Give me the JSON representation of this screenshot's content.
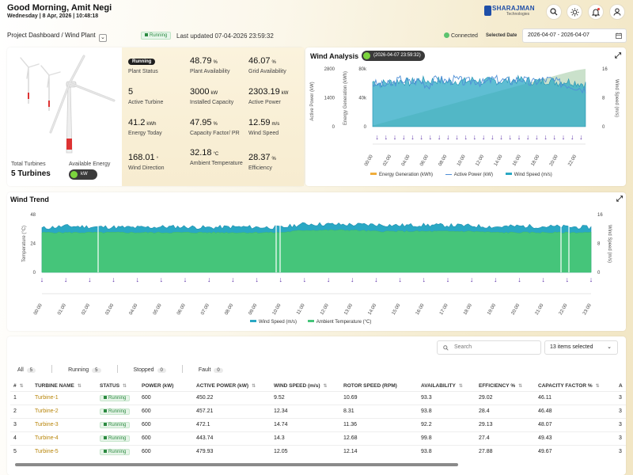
{
  "header": {
    "greeting": "Good Morning, Amit Negi",
    "date": "Wednesday | 8 Apr, 2026 | 10:48:18",
    "logo_name": "SHARAJMAN",
    "logo_sub": "Technologies",
    "icons": [
      "search-icon",
      "sun-icon",
      "bell-icon",
      "user-icon"
    ]
  },
  "toolbar": {
    "breadcrumb_root": "Project Dashboard",
    "breadcrumb_sep": "/",
    "breadcrumb_current": "Wind Plant",
    "status": "Running",
    "last_updated": "Last updated 07-04-2026 23:59:32",
    "connected": "Connected",
    "selected_date_label": "Selected Date",
    "date_range": "2026-04-07 - 2026-04-07"
  },
  "overview": {
    "total_turbines_label": "Total Turbines",
    "total_turbines_value": "5 Turbines",
    "available_energy_label": "Available Energy",
    "available_energy_unit": "kW",
    "plant_status": "Running",
    "plant_status_label": "Plant Status",
    "kpis": [
      {
        "value": "48.79",
        "unit": "%",
        "label": "Plant Availability"
      },
      {
        "value": "46.07",
        "unit": "%",
        "label": "Grid Availability"
      },
      {
        "value": "5",
        "unit": "",
        "label": "Active Turbine"
      },
      {
        "value": "3000",
        "unit": "kW",
        "label": "Installed Capacity"
      },
      {
        "value": "2303.19",
        "unit": "kW",
        "label": "Active Power"
      },
      {
        "value": "41.2",
        "unit": "kWh",
        "label": "Energy Today"
      },
      {
        "value": "47.95",
        "unit": "%",
        "label": "Capacity Factor/ PR"
      },
      {
        "value": "12.59",
        "unit": "m/s",
        "label": "Wind Speed"
      },
      {
        "value": "168.01",
        "unit": "°",
        "label": "Wind Direction"
      },
      {
        "value": "32.18",
        "unit": "°C",
        "label": "Ambient Temperature"
      },
      {
        "value": "28.37",
        "unit": "%",
        "label": "Efficiency"
      }
    ]
  },
  "chart_data": [
    {
      "type": "area",
      "title": "Wind Analysis",
      "timestamp": "(2026-04-07 23:59:32)",
      "x": [
        "00:00",
        "01:00",
        "02:00",
        "03:00",
        "04:00",
        "05:00",
        "06:00",
        "07:00",
        "08:00",
        "09:00",
        "10:00",
        "11:00",
        "12:00",
        "13:00",
        "14:00",
        "15:00",
        "16:00",
        "17:00",
        "18:00",
        "19:00",
        "20:00",
        "21:00",
        "22:00",
        "23:00"
      ],
      "y_left_outer": {
        "label": "Active Power (kW)",
        "ticks": [
          0,
          1400,
          2800
        ],
        "ylim": [
          0,
          2800
        ]
      },
      "y_left_inner": {
        "label": "Energy Generation (kWh)",
        "ticks": [
          "0",
          "40k",
          "80k"
        ],
        "ylim": [
          0,
          80000
        ]
      },
      "y_right": {
        "label": "Wind Speed (m/s)",
        "ticks": [
          0,
          8,
          16
        ],
        "ylim": [
          0,
          16
        ]
      },
      "legend_position": "bottom",
      "series": [
        {
          "name": "Energy Generation (kWh)",
          "color": "#f0ad3c",
          "values": [
            1500,
            5000,
            8500,
            12000,
            15500,
            19000,
            22500,
            26000,
            29500,
            33000,
            36500,
            40000,
            43500,
            47000,
            50500,
            54000,
            57500,
            61000,
            64500,
            68000,
            71500,
            75000,
            78000,
            80000
          ]
        },
        {
          "name": "Active Power (kW)",
          "color": "#4f8fd6",
          "values": [
            2100,
            2000,
            2050,
            2300,
            2150,
            2250,
            2000,
            2350,
            2200,
            2300,
            2150,
            2250,
            2100,
            2300,
            2250,
            2200,
            2350,
            2100,
            2250,
            2300,
            2150,
            2050,
            1950,
            1800
          ]
        },
        {
          "name": "Wind Speed (m/s)",
          "color": "#2aa8c4",
          "values": [
            12.5,
            12.0,
            12.4,
            12.8,
            12.2,
            13.0,
            12.6,
            12.9,
            12.3,
            12.7,
            12.5,
            13.1,
            12.4,
            12.8,
            12.6,
            12.9,
            13.0,
            12.7,
            12.5,
            12.8,
            12.3,
            12.6,
            12.2,
            11.8
          ]
        }
      ]
    },
    {
      "type": "area",
      "title": "Wind Trend",
      "x": [
        "00:00",
        "01:00",
        "02:00",
        "03:00",
        "04:00",
        "05:00",
        "06:00",
        "07:00",
        "08:00",
        "09:00",
        "10:00",
        "11:00",
        "12:00",
        "13:00",
        "14:00",
        "15:00",
        "16:00",
        "17:00",
        "18:00",
        "19:00",
        "20:00",
        "21:00",
        "22:00",
        "23:00"
      ],
      "y_left": {
        "label": "Temperature (°C)",
        "ticks": [
          0,
          24,
          48
        ],
        "ylim": [
          0,
          48
        ]
      },
      "y_right": {
        "label": "Wind Speed (m/s)",
        "ticks": [
          0,
          8,
          16
        ],
        "ylim": [
          0,
          16
        ]
      },
      "legend_position": "bottom",
      "series": [
        {
          "name": "Wind Speed (m/s)",
          "color": "#2aa8c4",
          "values": [
            12.2,
            12.8,
            12.6,
            12.5,
            12.4,
            12.6,
            12.6,
            12.4,
            12.6,
            12.5,
            12.4,
            13.4,
            13.3,
            13.2,
            13.2,
            13.0,
            13.1,
            13.0,
            12.9,
            12.6,
            12.8,
            12.7,
            12.6,
            12.4
          ]
        },
        {
          "name": "Ambient Temperature (°C)",
          "color": "#45c57a",
          "values": [
            33,
            33,
            33,
            33,
            33,
            33,
            33,
            33,
            33,
            33,
            33,
            35,
            35,
            35,
            34,
            34,
            34,
            34,
            34,
            33,
            33,
            33,
            33,
            33
          ]
        }
      ]
    }
  ],
  "table": {
    "search_placeholder": "Search",
    "selection": "13 items selected",
    "filters": [
      {
        "label": "All",
        "count": "5"
      },
      {
        "label": "Running",
        "count": "5"
      },
      {
        "label": "Stopped",
        "count": "0"
      },
      {
        "label": "Fault",
        "count": "0"
      }
    ],
    "columns": [
      "#",
      "TURBINE NAME",
      "STATUS",
      "POWER (kW)",
      "ACTIVE POWER (kW)",
      "WIND SPEED (m/s)",
      "ROTOR SPEED (RPM)",
      "AVAILABILITY",
      "EFFICIENCY %",
      "CAPACITY FACTOR %",
      "A"
    ],
    "rows": [
      [
        "1",
        "Turbine-1",
        "Running",
        "600",
        "450.22",
        "9.52",
        "10.69",
        "93.3",
        "29.02",
        "46.11",
        "3"
      ],
      [
        "2",
        "Turbine-2",
        "Running",
        "600",
        "457.21",
        "12.34",
        "8.31",
        "93.8",
        "28.4",
        "46.48",
        "3"
      ],
      [
        "3",
        "Turbine-3",
        "Running",
        "600",
        "472.1",
        "14.74",
        "11.36",
        "92.2",
        "29.13",
        "48.07",
        "3"
      ],
      [
        "4",
        "Turbine-4",
        "Running",
        "600",
        "443.74",
        "14.3",
        "12.68",
        "99.8",
        "27.4",
        "49.43",
        "3"
      ],
      [
        "5",
        "Turbine-5",
        "Running",
        "600",
        "479.93",
        "12.05",
        "12.14",
        "93.8",
        "27.88",
        "49.67",
        "3"
      ]
    ]
  }
}
